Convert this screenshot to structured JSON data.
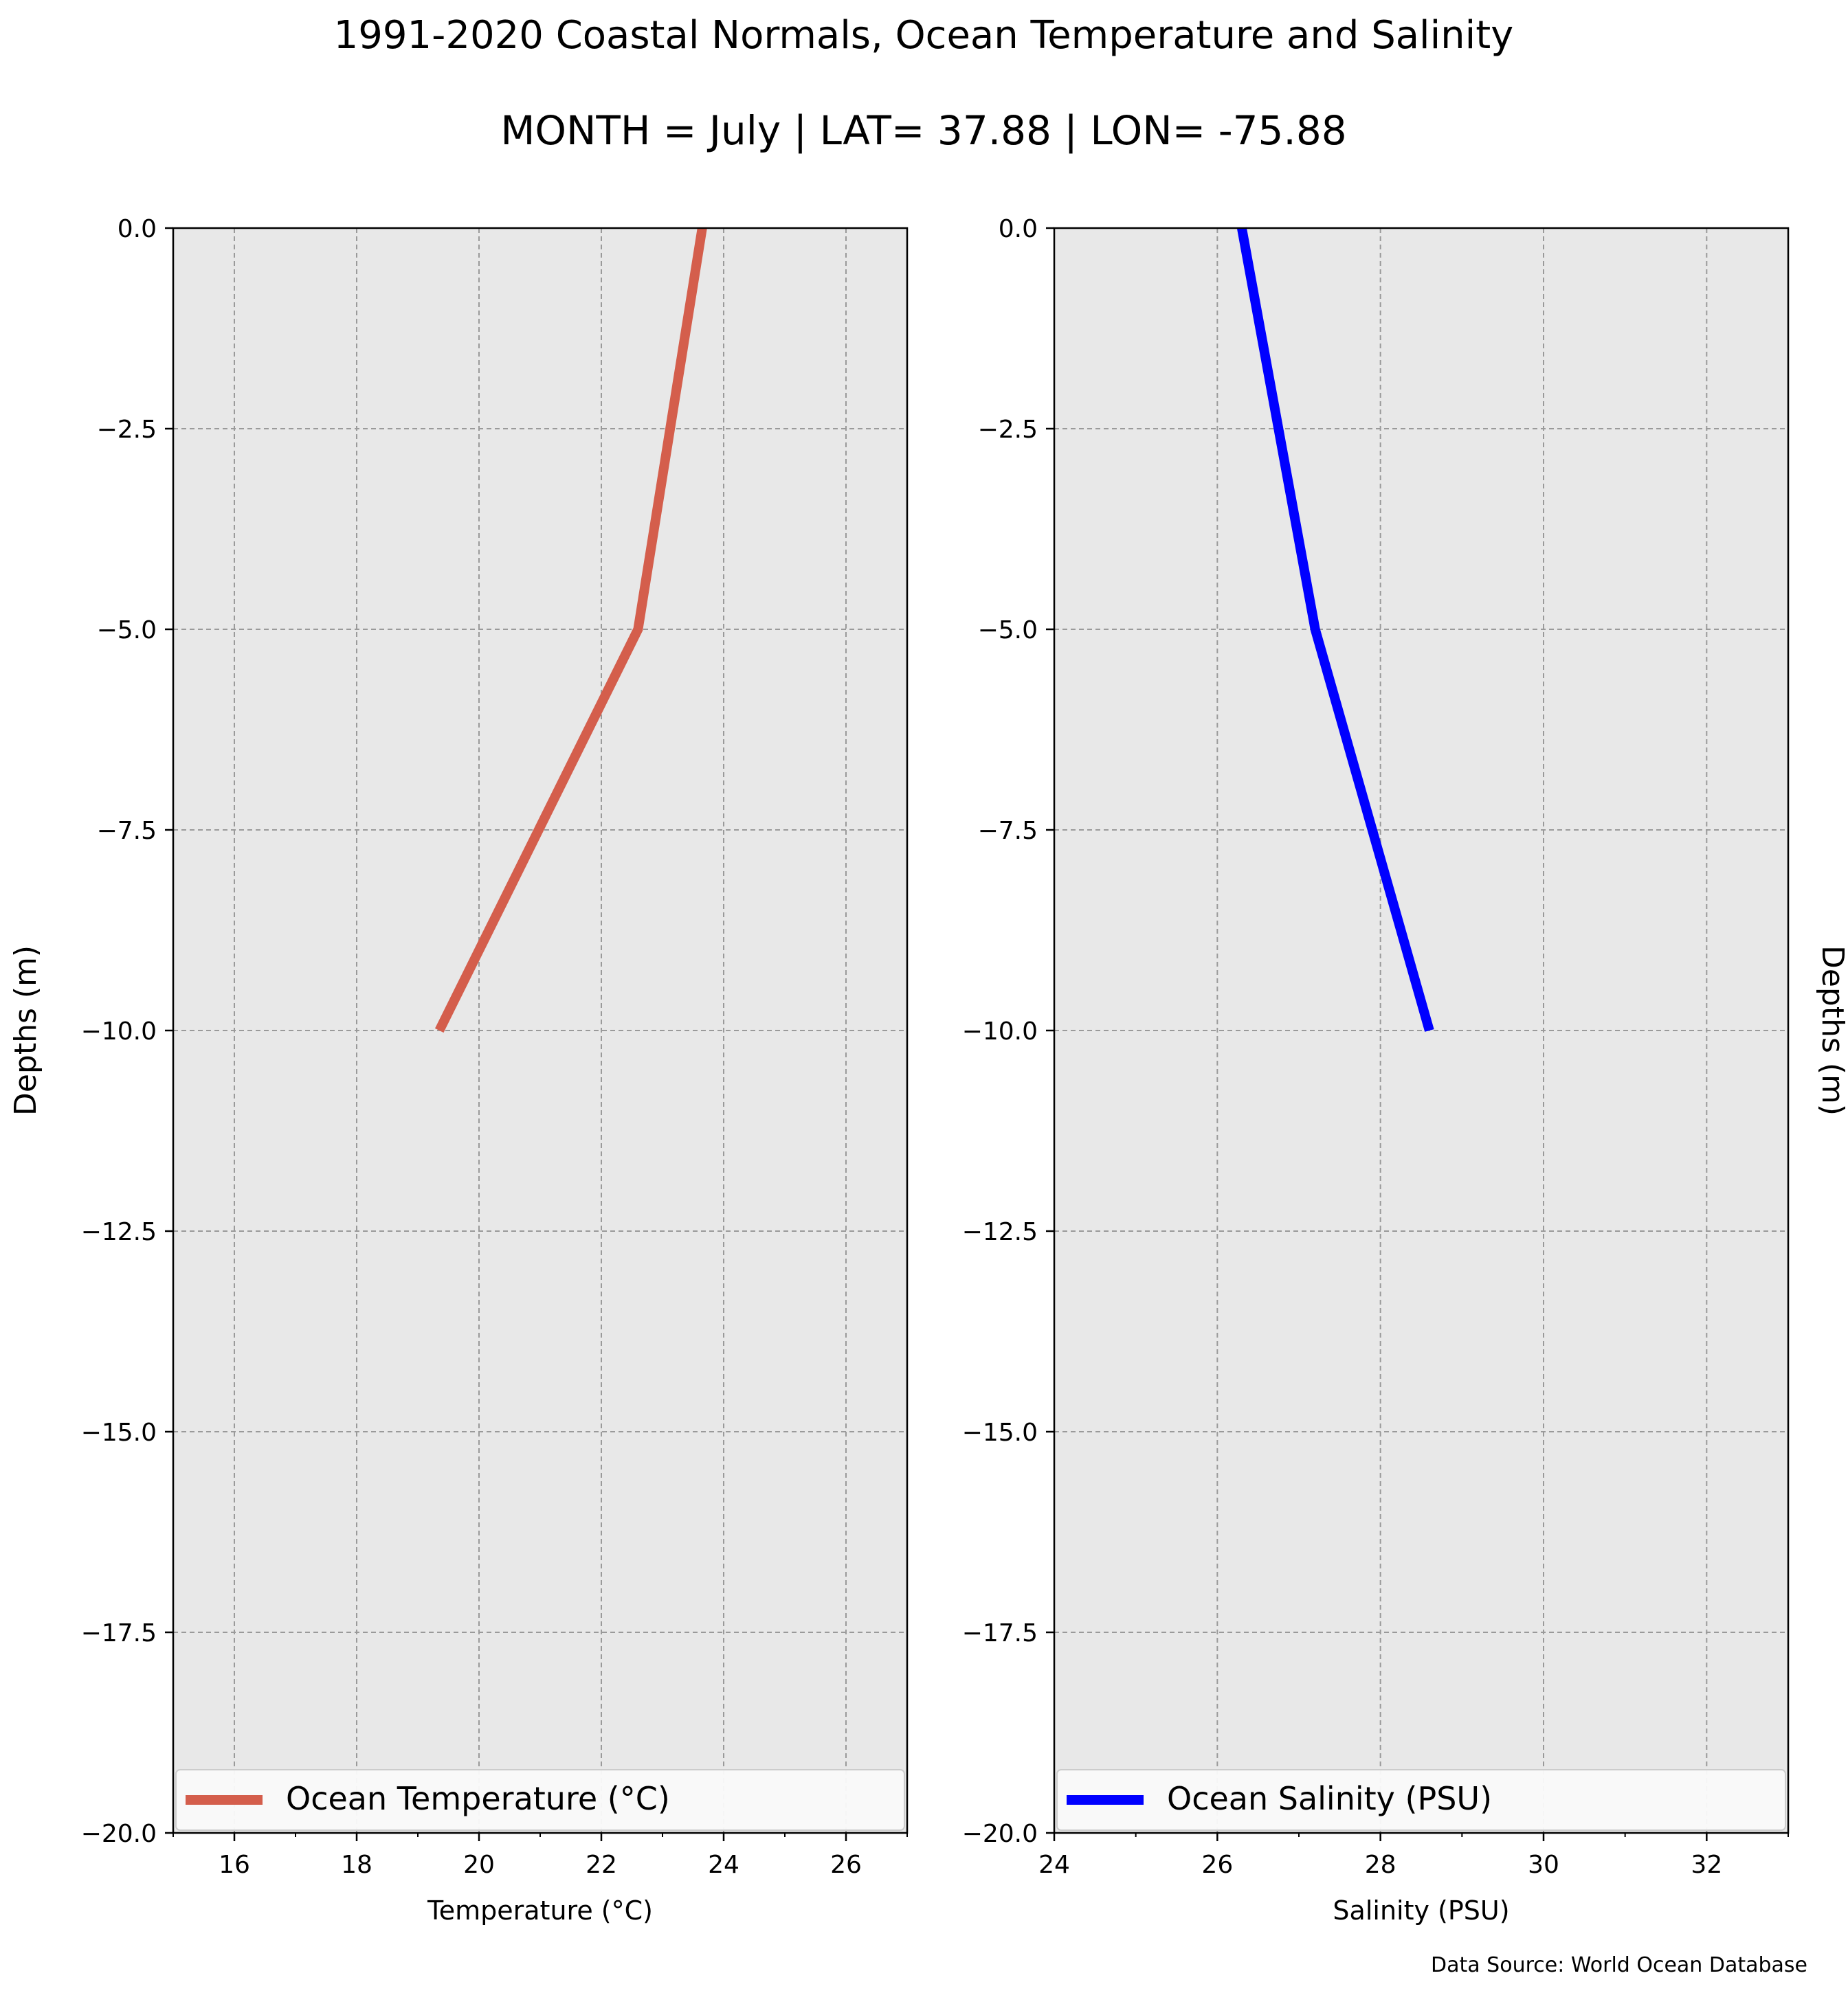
{
  "figure": {
    "title": "1991-2020 Coastal Normals, Ocean Temperature and Salinity",
    "subtitle": "MONTH = July | LAT= 37.88 | LON= -75.88",
    "source_note": "Data Source: World Ocean Database"
  },
  "chart_data": [
    {
      "type": "line",
      "xlabel": "Temperature (°C)",
      "ylabel": "Depths (m)",
      "ylabel_side": "left",
      "xlim": [
        15,
        27
      ],
      "ylim": [
        -20,
        0
      ],
      "xticks": [
        16,
        18,
        20,
        22,
        24,
        26
      ],
      "xticks_minor": [
        15,
        17,
        19,
        21,
        23,
        25,
        27
      ],
      "yticks": [
        0.0,
        -2.5,
        -5.0,
        -7.5,
        -10.0,
        -12.5,
        -15.0,
        -17.5,
        -20.0
      ],
      "grid": true,
      "background_color": "#e8e8e8",
      "legend_position": "lower-center",
      "series": [
        {
          "name": "Ocean Temperature (°C)",
          "color": "#d45e4c",
          "x": [
            23.65,
            22.6,
            19.35
          ],
          "y": [
            0,
            -5,
            -10
          ]
        }
      ]
    },
    {
      "type": "line",
      "xlabel": "Salinity (PSU)",
      "ylabel": "Depths (m)",
      "ylabel_side": "right",
      "xlim": [
        24,
        33
      ],
      "ylim": [
        -20,
        0
      ],
      "xticks": [
        24,
        26,
        28,
        30,
        32
      ],
      "xticks_minor": [
        25,
        27,
        29,
        31,
        33
      ],
      "yticks": [
        0.0,
        -2.5,
        -5.0,
        -7.5,
        -10.0,
        -12.5,
        -15.0,
        -17.5,
        -20.0
      ],
      "grid": true,
      "background_color": "#e8e8e8",
      "legend_position": "lower-center",
      "series": [
        {
          "name": "Ocean Salinity (PSU)",
          "color": "#0000ff",
          "x": [
            26.3,
            27.2,
            28.6
          ],
          "y": [
            0,
            -5,
            -10
          ]
        }
      ]
    }
  ]
}
